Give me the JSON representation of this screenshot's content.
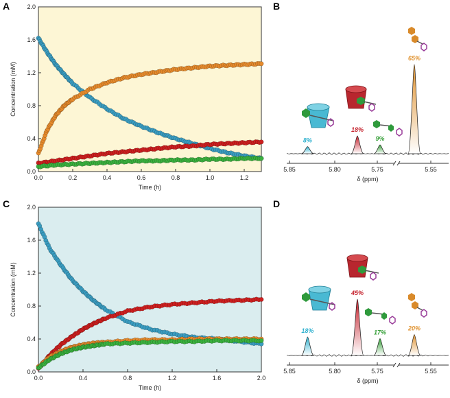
{
  "chart_data": [
    {
      "panel": "A",
      "type": "scatter",
      "xlabel": "Time (h)",
      "ylabel": "Concentration (mM)",
      "xlim": [
        0,
        1.3
      ],
      "ylim": [
        0,
        2.0
      ],
      "xticks": [
        "0.0",
        "0.2",
        "0.4",
        "0.6",
        "0.8",
        "1.0",
        "1.2"
      ],
      "yticks": [
        "0.0",
        "0.4",
        "0.8",
        "1.2",
        "1.6",
        "2.0"
      ],
      "background": "#fdf6d5",
      "series": [
        {
          "name": "blue",
          "color": "#3a9cc0",
          "x": [
            0,
            0.05,
            0.1,
            0.15,
            0.2,
            0.3,
            0.4,
            0.5,
            0.6,
            0.7,
            0.8,
            0.9,
            1.0,
            1.1,
            1.2,
            1.3
          ],
          "y": [
            1.62,
            1.45,
            1.3,
            1.18,
            1.07,
            0.9,
            0.76,
            0.64,
            0.55,
            0.47,
            0.4,
            0.34,
            0.28,
            0.23,
            0.19,
            0.16
          ]
        },
        {
          "name": "orange",
          "color": "#e58a2c",
          "x": [
            0,
            0.05,
            0.1,
            0.15,
            0.2,
            0.3,
            0.4,
            0.5,
            0.6,
            0.7,
            0.8,
            0.9,
            1.0,
            1.1,
            1.2,
            1.3
          ],
          "y": [
            0.22,
            0.5,
            0.68,
            0.8,
            0.88,
            1.0,
            1.08,
            1.14,
            1.18,
            1.21,
            1.24,
            1.26,
            1.28,
            1.29,
            1.3,
            1.31
          ]
        },
        {
          "name": "red",
          "color": "#cc1f1f",
          "x": [
            0,
            0.1,
            0.2,
            0.3,
            0.4,
            0.5,
            0.6,
            0.7,
            0.8,
            0.9,
            1.0,
            1.1,
            1.2,
            1.3
          ],
          "y": [
            0.1,
            0.13,
            0.16,
            0.19,
            0.22,
            0.24,
            0.26,
            0.28,
            0.3,
            0.31,
            0.33,
            0.34,
            0.35,
            0.36
          ]
        },
        {
          "name": "green",
          "color": "#3ab03e",
          "x": [
            0,
            0.1,
            0.2,
            0.3,
            0.4,
            0.5,
            0.6,
            0.7,
            0.8,
            0.9,
            1.0,
            1.1,
            1.2,
            1.3
          ],
          "y": [
            0.06,
            0.08,
            0.09,
            0.1,
            0.11,
            0.12,
            0.13,
            0.13,
            0.14,
            0.14,
            0.15,
            0.15,
            0.16,
            0.16
          ]
        }
      ]
    },
    {
      "panel": "B",
      "type": "line",
      "xlabel": "δ (ppm)",
      "xticks": [
        "5.85",
        "5.80",
        "5.75",
        "5.55"
      ],
      "peaks": [
        {
          "label": "8%",
          "color": "#2fb1cf",
          "ppm": 5.83,
          "height": 0.08
        },
        {
          "label": "18%",
          "color": "#c41f2a",
          "ppm": 5.775,
          "height": 0.2
        },
        {
          "label": "9%",
          "color": "#38a03a",
          "ppm": 5.75,
          "height": 0.1
        },
        {
          "label": "65%",
          "color": "#e0922f",
          "ppm": 5.57,
          "height": 1.0
        }
      ]
    },
    {
      "panel": "C",
      "type": "scatter",
      "xlabel": "Time (h)",
      "ylabel": "Concentration (mM)",
      "xlim": [
        0,
        2.0
      ],
      "ylim": [
        0,
        2.0
      ],
      "xticks": [
        "0.0",
        "0.4",
        "0.8",
        "1.2",
        "1.6",
        "2.0"
      ],
      "yticks": [
        "0.0",
        "0.4",
        "0.8",
        "1.2",
        "1.6",
        "2.0"
      ],
      "background": "#daedef",
      "series": [
        {
          "name": "blue",
          "color": "#3a9cc0",
          "x": [
            0,
            0.1,
            0.2,
            0.3,
            0.4,
            0.5,
            0.6,
            0.8,
            1.0,
            1.2,
            1.4,
            1.6,
            1.8,
            2.0
          ],
          "y": [
            1.8,
            1.5,
            1.3,
            1.12,
            0.98,
            0.86,
            0.76,
            0.61,
            0.52,
            0.46,
            0.42,
            0.4,
            0.37,
            0.34
          ]
        },
        {
          "name": "red",
          "color": "#cc1f1f",
          "x": [
            0,
            0.1,
            0.2,
            0.3,
            0.4,
            0.5,
            0.6,
            0.8,
            1.0,
            1.2,
            1.4,
            1.6,
            1.8,
            2.0
          ],
          "y": [
            0.04,
            0.2,
            0.33,
            0.43,
            0.52,
            0.59,
            0.65,
            0.74,
            0.79,
            0.82,
            0.84,
            0.86,
            0.87,
            0.88
          ]
        },
        {
          "name": "orange",
          "color": "#e58a2c",
          "x": [
            0,
            0.1,
            0.2,
            0.3,
            0.4,
            0.5,
            0.6,
            0.8,
            1.0,
            1.2,
            1.4,
            1.6,
            1.8,
            2.0
          ],
          "y": [
            0.06,
            0.18,
            0.25,
            0.3,
            0.33,
            0.35,
            0.36,
            0.38,
            0.39,
            0.39,
            0.4,
            0.4,
            0.4,
            0.4
          ]
        },
        {
          "name": "green",
          "color": "#3ab03e",
          "x": [
            0,
            0.1,
            0.2,
            0.3,
            0.4,
            0.5,
            0.6,
            0.8,
            1.0,
            1.2,
            1.4,
            1.6,
            1.8,
            2.0
          ],
          "y": [
            0.05,
            0.15,
            0.22,
            0.27,
            0.3,
            0.32,
            0.34,
            0.35,
            0.36,
            0.37,
            0.37,
            0.38,
            0.38,
            0.38
          ]
        }
      ]
    },
    {
      "panel": "D",
      "type": "line",
      "xlabel": "δ (ppm)",
      "xticks": [
        "5.85",
        "5.80",
        "5.75",
        "5.55"
      ],
      "peaks": [
        {
          "label": "18%",
          "color": "#2fb1cf",
          "ppm": 5.83,
          "height": 0.33
        },
        {
          "label": "45%",
          "color": "#c41f2a",
          "ppm": 5.775,
          "height": 1.0
        },
        {
          "label": "17%",
          "color": "#38a03a",
          "ppm": 5.75,
          "height": 0.3
        },
        {
          "label": "20%",
          "color": "#e0922f",
          "ppm": 5.57,
          "height": 0.37
        }
      ]
    }
  ]
}
